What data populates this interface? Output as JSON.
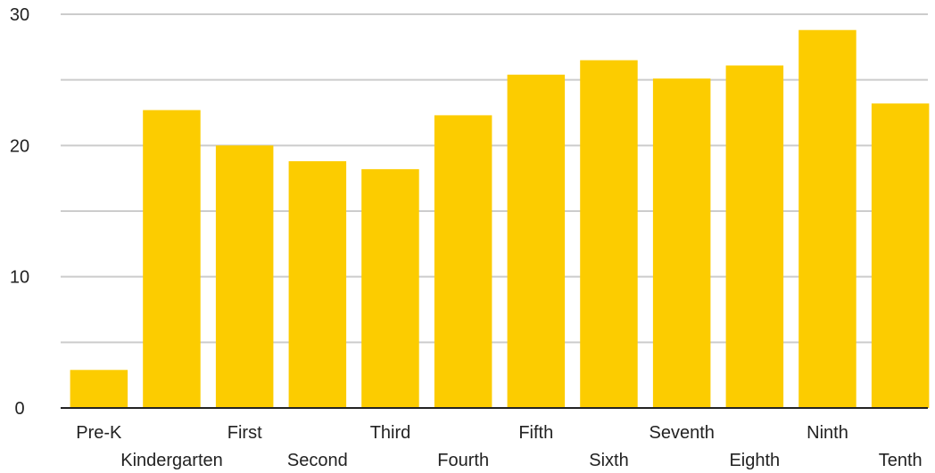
{
  "chart_data": {
    "type": "bar",
    "title": "",
    "xlabel": "",
    "ylabel": "",
    "categories": [
      "Pre-K",
      "Kindergarten",
      "First",
      "Second",
      "Third",
      "Fourth",
      "Fifth",
      "Sixth",
      "Seventh",
      "Eighth",
      "Ninth",
      "Tenth"
    ],
    "values": [
      2.9,
      22.7,
      20.0,
      18.8,
      18.2,
      22.3,
      25.4,
      26.5,
      25.1,
      26.1,
      28.8,
      23.2
    ],
    "ylim": [
      0,
      30
    ],
    "yticks": [
      0,
      10,
      20,
      30
    ],
    "grid": true,
    "legend": "none",
    "bar_color": "#fccc00"
  }
}
